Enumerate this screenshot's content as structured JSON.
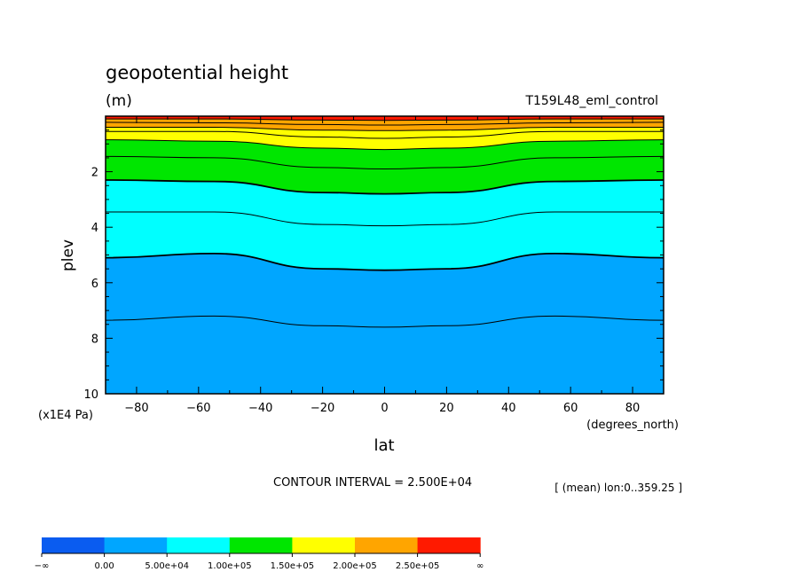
{
  "chart_data": {
    "type": "contour",
    "title": "geopotential height",
    "units": "(m)",
    "run_label": "T159L48_eml_control",
    "xlabel": "lat",
    "xunits": "(degrees_north)",
    "ylabel": "plev",
    "yunits": "(x1E4 Pa)",
    "xlim": [
      -90,
      90
    ],
    "ylim": [
      10,
      0
    ],
    "x_ticks": [
      -80,
      -60,
      -40,
      -20,
      0,
      20,
      40,
      60,
      80
    ],
    "x_tick_labels": [
      "−80",
      "−60",
      "−40",
      "−20",
      "0",
      "20",
      "40",
      "60",
      "80"
    ],
    "y_ticks": [
      2,
      4,
      6,
      8,
      10
    ],
    "y_tick_labels": [
      "2",
      "4",
      "6",
      "8",
      "10"
    ],
    "contour_interval_text": "CONTOUR INTERVAL = 2.500E+04",
    "mean_note": "[ (mean) lon:0..359.25 ]",
    "contour_levels": [
      25000,
      50000,
      75000,
      100000,
      125000,
      150000,
      175000,
      200000,
      225000,
      250000
    ],
    "contour_lines_plev_at_lat": {
      "lat": [
        -90,
        -55,
        -20,
        0,
        20,
        55,
        90
      ],
      "levels": [
        {
          "value": 25000,
          "plev": [
            7.35,
            7.2,
            7.55,
            7.6,
            7.55,
            7.2,
            7.35
          ]
        },
        {
          "value": 50000,
          "plev": [
            5.1,
            4.95,
            5.5,
            5.55,
            5.5,
            4.95,
            5.1
          ]
        },
        {
          "value": 75000,
          "plev": [
            3.45,
            3.45,
            3.9,
            3.95,
            3.9,
            3.45,
            3.45
          ]
        },
        {
          "value": 100000,
          "plev": [
            2.3,
            2.35,
            2.75,
            2.8,
            2.75,
            2.35,
            2.3
          ]
        },
        {
          "value": 125000,
          "plev": [
            1.45,
            1.5,
            1.85,
            1.9,
            1.85,
            1.5,
            1.45
          ]
        },
        {
          "value": 150000,
          "plev": [
            0.85,
            0.9,
            1.15,
            1.2,
            1.15,
            0.9,
            0.85
          ]
        },
        {
          "value": 175000,
          "plev": [
            0.55,
            0.55,
            0.75,
            0.8,
            0.75,
            0.55,
            0.55
          ]
        },
        {
          "value": 200000,
          "plev": [
            0.4,
            0.4,
            0.5,
            0.52,
            0.5,
            0.4,
            0.4
          ]
        },
        {
          "value": 225000,
          "plev": [
            0.22,
            0.24,
            0.3,
            0.32,
            0.3,
            0.24,
            0.22
          ]
        },
        {
          "value": 250000,
          "plev": [
            0.1,
            0.1,
            0.14,
            0.15,
            0.14,
            0.1,
            0.1
          ]
        }
      ]
    },
    "colorbar": {
      "colors": [
        "#0a5cf0",
        "#00a6ff",
        "#00ffff",
        "#00e600",
        "#ffff00",
        "#ffa500",
        "#ff1a00"
      ],
      "labels": [
        "−∞",
        "0.00",
        "5.00e+04",
        "1.00e+05",
        "1.50e+05",
        "2.00e+05",
        "2.50e+05",
        "∞"
      ]
    },
    "line_color": "#000000"
  }
}
